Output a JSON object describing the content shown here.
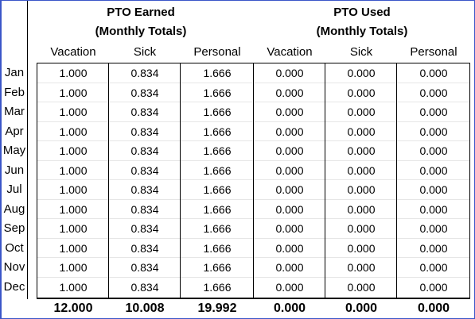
{
  "groups": [
    {
      "line1": "PTO Earned",
      "line2": "(Monthly Totals)"
    },
    {
      "line1": "PTO Used",
      "line2": "(Monthly Totals)"
    }
  ],
  "columns": [
    "Vacation",
    "Sick",
    "Personal",
    "Vacation",
    "Sick",
    "Personal"
  ],
  "rows": [
    {
      "month": "Jan",
      "values": [
        "1.000",
        "0.834",
        "1.666",
        "0.000",
        "0.000",
        "0.000"
      ]
    },
    {
      "month": "Feb",
      "values": [
        "1.000",
        "0.834",
        "1.666",
        "0.000",
        "0.000",
        "0.000"
      ]
    },
    {
      "month": "Mar",
      "values": [
        "1.000",
        "0.834",
        "1.666",
        "0.000",
        "0.000",
        "0.000"
      ]
    },
    {
      "month": "Apr",
      "values": [
        "1.000",
        "0.834",
        "1.666",
        "0.000",
        "0.000",
        "0.000"
      ]
    },
    {
      "month": "May",
      "values": [
        "1.000",
        "0.834",
        "1.666",
        "0.000",
        "0.000",
        "0.000"
      ]
    },
    {
      "month": "Jun",
      "values": [
        "1.000",
        "0.834",
        "1.666",
        "0.000",
        "0.000",
        "0.000"
      ]
    },
    {
      "month": "Jul",
      "values": [
        "1.000",
        "0.834",
        "1.666",
        "0.000",
        "0.000",
        "0.000"
      ]
    },
    {
      "month": "Aug",
      "values": [
        "1.000",
        "0.834",
        "1.666",
        "0.000",
        "0.000",
        "0.000"
      ]
    },
    {
      "month": "Sep",
      "values": [
        "1.000",
        "0.834",
        "1.666",
        "0.000",
        "0.000",
        "0.000"
      ]
    },
    {
      "month": "Oct",
      "values": [
        "1.000",
        "0.834",
        "1.666",
        "0.000",
        "0.000",
        "0.000"
      ]
    },
    {
      "month": "Nov",
      "values": [
        "1.000",
        "0.834",
        "1.666",
        "0.000",
        "0.000",
        "0.000"
      ]
    },
    {
      "month": "Dec",
      "values": [
        "1.000",
        "0.834",
        "1.666",
        "0.000",
        "0.000",
        "0.000"
      ]
    }
  ],
  "totals": [
    "12.000",
    "10.008",
    "19.992",
    "0.000",
    "0.000",
    "0.000"
  ],
  "colors": {
    "frame": "#3b56c8",
    "grid": "#000000"
  }
}
